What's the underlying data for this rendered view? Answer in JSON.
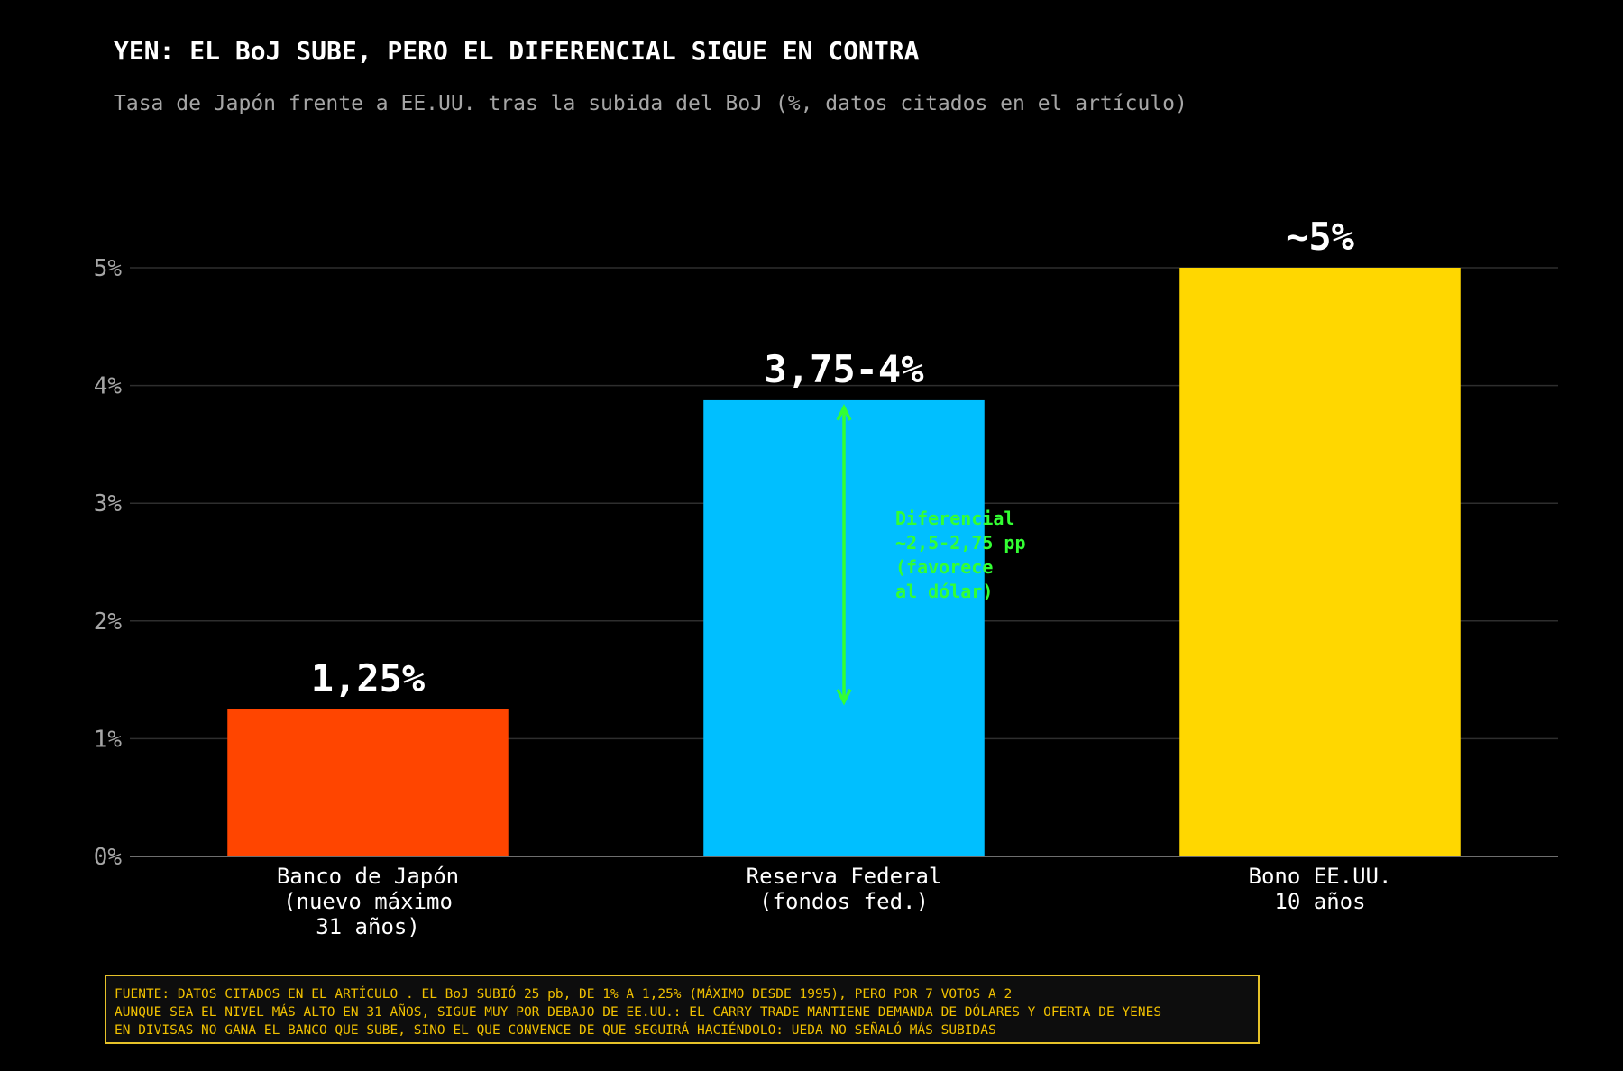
{
  "title": "YEN: EL BoJ SUBE, PERO EL DIFERENCIAL SIGUE EN CONTRA",
  "subtitle": "Tasa de Japón frente a EE.UU. tras la subida del BoJ (%, datos citados en el artículo)",
  "chart_data": {
    "type": "bar",
    "title": "YEN: EL BoJ SUBE, PERO EL DIFERENCIAL SIGUE EN CONTRA",
    "subtitle": "Tasa de Japón frente a EE.UU. tras la subida del BoJ (%, datos citados en el artículo)",
    "xlabel": "",
    "ylabel": "",
    "ylim": [
      0,
      5
    ],
    "yticks": [
      0,
      1,
      2,
      3,
      4,
      5
    ],
    "ytick_labels": [
      "0%",
      "1%",
      "2%",
      "3%",
      "4%",
      "5%"
    ],
    "grid": true,
    "categories": [
      [
        "Banco de Japón",
        "(nuevo máximo",
        "31 años)"
      ],
      [
        "Reserva Federal",
        "(fondos fed.)"
      ],
      [
        "Bono EE.UU.",
        "10 años"
      ]
    ],
    "values": [
      1.25,
      3.875,
      5.0
    ],
    "value_labels": [
      "1,25%",
      "3,75-4%",
      "~5%"
    ],
    "colors": [
      "#ff4500",
      "#00bfff",
      "#ffd700"
    ],
    "annotation": {
      "lines": [
        "Diferencial",
        "~2,5-2,75 pp",
        "(favorece",
        "al dólar)"
      ],
      "arrow_from": 1.25,
      "arrow_to": 3.875,
      "category_index": 1,
      "color": "#33ff33"
    }
  },
  "footnote": {
    "lines": [
      "FUENTE: DATOS CITADOS EN EL ARTÍCULO . EL BoJ SUBIÓ 25 pb, DE 1% A 1,25% (MÁXIMO DESDE 1995), PERO POR 7 VOTOS A 2",
      "AUNQUE SEA EL NIVEL MÁS ALTO EN 31 AÑOS, SIGUE MUY POR DEBAJO DE EE.UU.: EL CARRY TRADE MANTIENE DEMANDA DE DÓLARES Y OFERTA DE YENES",
      "EN DIVISAS NO GANA EL BANCO QUE SUBE, SINO EL QUE CONVENCE DE QUE SEGUIRÁ HACIÉNDOLO: UEDA NO SEÑALÓ MÁS SUBIDAS"
    ],
    "border_color": "#e6c229",
    "text_color": "#f0c000"
  }
}
